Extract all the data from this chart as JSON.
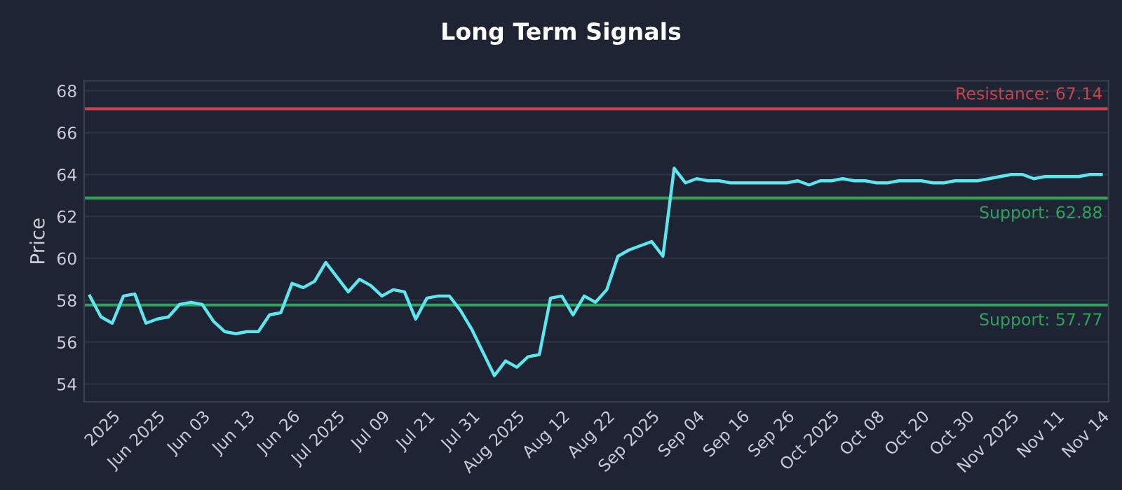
{
  "chart_data": {
    "type": "line",
    "title": "Long Term Signals",
    "ylabel": "Price",
    "categories": [
      null,
      null,
      "2025",
      null,
      null,
      null,
      "Jun 2025",
      null,
      null,
      null,
      "Jun 03",
      null,
      null,
      null,
      "Jun 13",
      null,
      null,
      null,
      "Jun 26",
      null,
      null,
      null,
      "Jul 2025",
      null,
      null,
      null,
      "Jul 09",
      null,
      null,
      null,
      "Jul 21",
      null,
      null,
      null,
      "Jul 31",
      null,
      null,
      null,
      "Aug 2025",
      null,
      null,
      null,
      "Aug 12",
      null,
      null,
      null,
      "Aug 22",
      null,
      null,
      null,
      "Sep 2025",
      null,
      null,
      null,
      "Sep 04",
      null,
      null,
      null,
      "Sep 16",
      null,
      null,
      null,
      "Sep 26",
      null,
      null,
      null,
      "Oct 2025",
      null,
      null,
      null,
      "Oct 08",
      null,
      null,
      null,
      "Oct 20",
      null,
      null,
      null,
      "Oct 30",
      null,
      null,
      null,
      "Nov 2025",
      null,
      null,
      null,
      "Nov 11",
      null,
      null,
      null,
      "Nov 14"
    ],
    "series": [
      {
        "color": "#5ee6ee",
        "values": [
          58.2,
          57.2,
          56.9,
          58.2,
          58.3,
          56.9,
          57.1,
          57.2,
          57.8,
          57.9,
          57.8,
          57.0,
          56.5,
          56.4,
          56.5,
          56.5,
          57.3,
          57.4,
          58.8,
          58.6,
          58.9,
          59.8,
          59.1,
          58.4,
          59.0,
          58.7,
          58.2,
          58.5,
          58.4,
          57.1,
          58.1,
          58.2,
          58.2,
          57.5,
          56.6,
          55.5,
          54.4,
          55.1,
          54.8,
          55.3,
          55.4,
          58.1,
          58.2,
          57.3,
          58.2,
          57.9,
          58.5,
          60.1,
          60.4,
          60.6,
          60.8,
          60.1,
          64.3,
          63.6,
          63.8,
          63.7,
          63.7,
          63.6,
          63.6,
          63.6,
          63.6,
          63.6,
          63.6,
          63.7,
          63.5,
          63.7,
          63.7,
          63.8,
          63.7,
          63.7,
          63.6,
          63.6,
          63.7,
          63.7,
          63.7,
          63.6,
          63.6,
          63.7,
          63.7,
          63.7,
          63.8,
          63.9,
          64.0,
          64.0,
          63.8,
          63.9,
          63.9,
          63.9,
          63.9,
          64.0,
          64.0
        ]
      }
    ],
    "ylim": [
      53.15,
      68.47
    ],
    "yticks": [
      54,
      56,
      58,
      60,
      62,
      64,
      66,
      68
    ],
    "grid": "y",
    "legend": false,
    "ref_lines": [
      {
        "axis": "y",
        "value": 67.14,
        "label": "Resistance: 67.14",
        "color": "#c9434c"
      },
      {
        "axis": "y",
        "value": 62.88,
        "label": "Support: 62.88",
        "color": "#2fa35c"
      },
      {
        "axis": "y",
        "value": 57.77,
        "label": "Support: 57.77",
        "color": "#2fa35c"
      }
    ]
  }
}
